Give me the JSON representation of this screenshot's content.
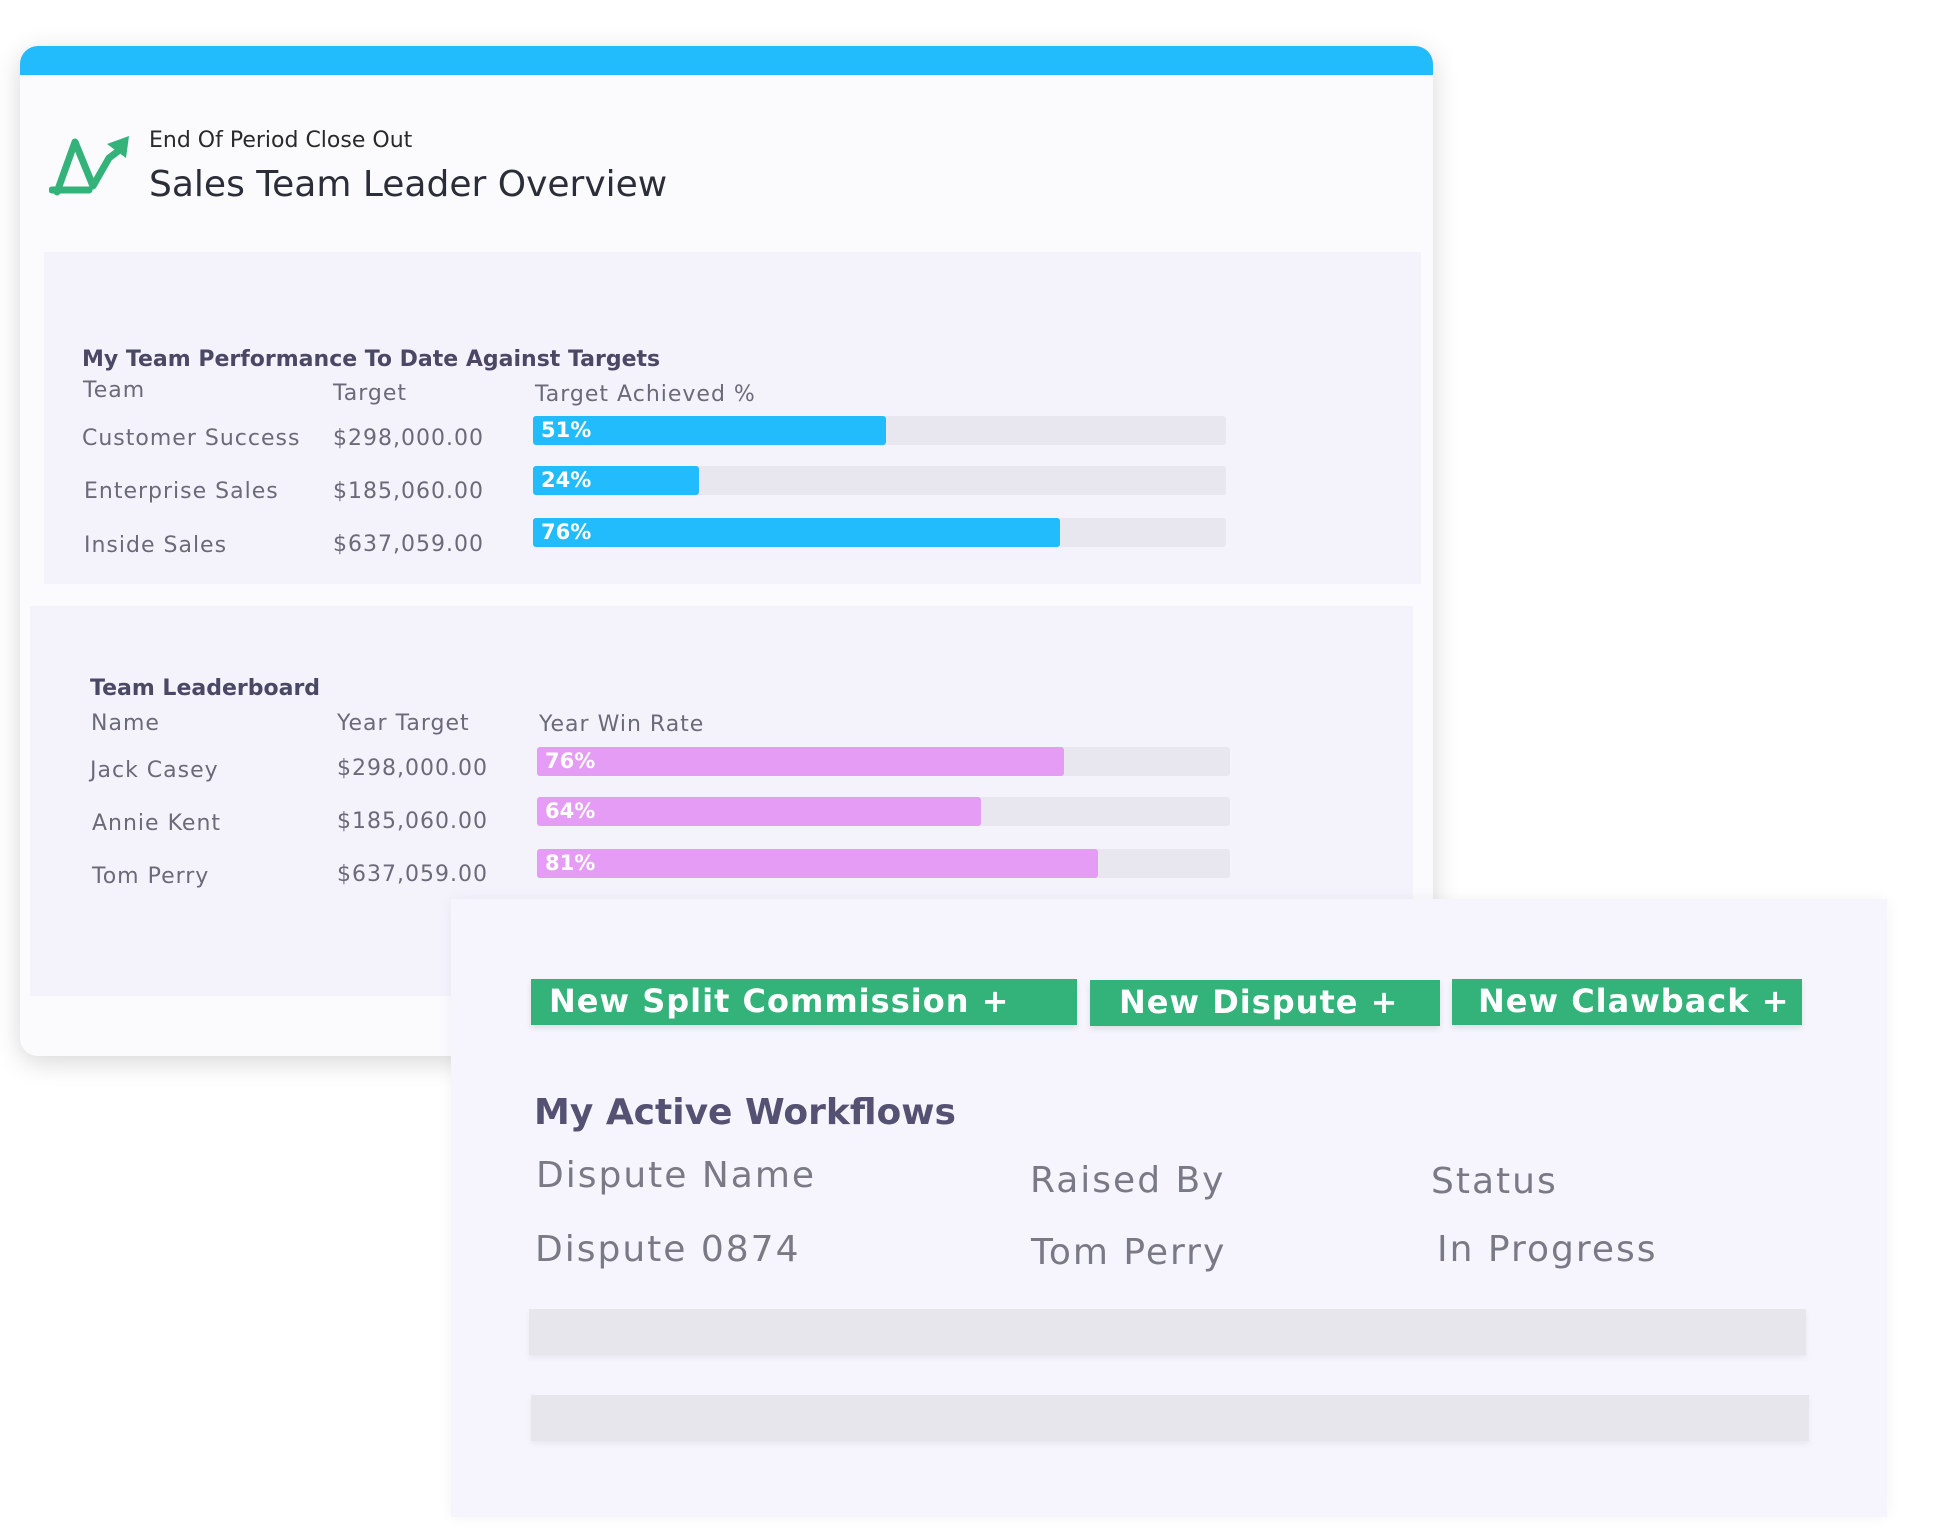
{
  "header": {
    "eyebrow": "End Of Period Close Out",
    "title": "Sales Team Leader Overview"
  },
  "performance": {
    "title": "My Team Performance To Date Against Targets",
    "columns": [
      "Team",
      "Target",
      "Target Achieved %"
    ],
    "rows": [
      {
        "team": "Customer Success",
        "target": "$298,000.00",
        "achieved_label": "51%",
        "achieved": 51
      },
      {
        "team": "Enterprise Sales",
        "target": "$185,060.00",
        "achieved_label": "24%",
        "achieved": 24
      },
      {
        "team": "Inside Sales",
        "target": "$637,059.00",
        "achieved_label": "76%",
        "achieved": 76
      }
    ]
  },
  "leaderboard": {
    "title": "Team Leaderboard",
    "columns": [
      "Name",
      "Year Target",
      "Year Win Rate"
    ],
    "rows": [
      {
        "name": "Jack Casey",
        "target": "$298,000.00",
        "rate_label": "76%",
        "rate": 76
      },
      {
        "name": "Annie Kent",
        "target": "$185,060.00",
        "rate_label": "64%",
        "rate": 64
      },
      {
        "name": "Tom Perry",
        "target": "$637,059.00",
        "rate_label": "81%",
        "rate": 81
      }
    ]
  },
  "actions": {
    "split_commission": "New Split Commission +",
    "dispute": "New Dispute +",
    "clawback": "New Clawback +"
  },
  "workflows": {
    "title": "My Active Workflows",
    "columns": [
      "Dispute Name",
      "Raised By",
      "Status"
    ],
    "rows": [
      {
        "name": "Dispute 0874",
        "raised_by": "Tom Perry",
        "status": "In Progress"
      }
    ]
  },
  "colors": {
    "topbar": "#22bbfc",
    "performance_bar": "#22bbfc",
    "leaderboard_bar": "#e59cf4",
    "action_button": "#33b27a",
    "logo": "#33b27a"
  },
  "icons": {
    "logo": "trend-arrow-icon"
  }
}
